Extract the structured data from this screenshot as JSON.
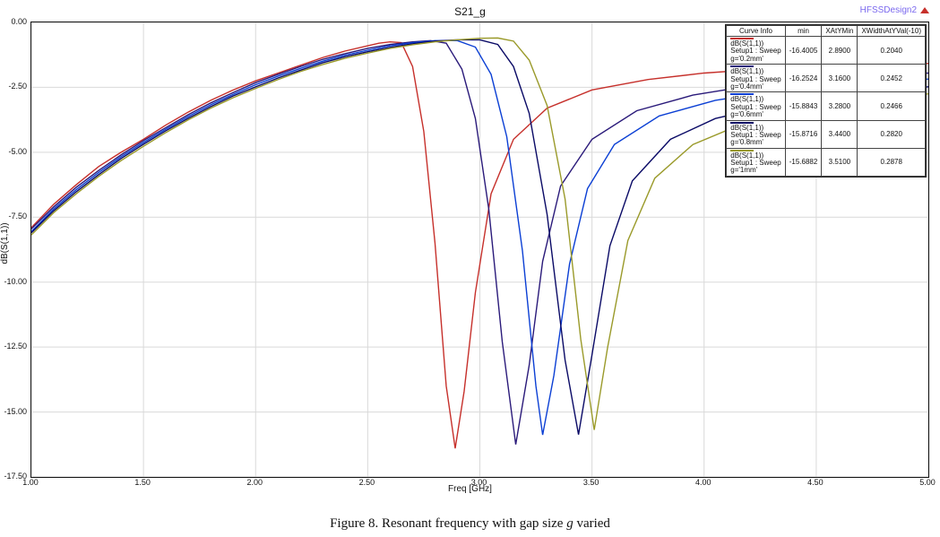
{
  "chart": {
    "type": "line",
    "title": "S21_g",
    "design_label": "HFSSDesign2",
    "x_label": "Freq [GHz]",
    "y_label": "dB(S(1,1))",
    "background_color": "#ffffff",
    "grid_color": "#d9d9d9",
    "border_color": "#111111",
    "axis_font_size": 9,
    "label_font_size": 10,
    "title_font_size": 12,
    "xlim": [
      1.0,
      5.0
    ],
    "ylim": [
      -17.5,
      0.0
    ],
    "xticks": [
      1.0,
      1.5,
      2.0,
      2.5,
      3.0,
      3.5,
      4.0,
      4.5,
      5.0
    ],
    "xtick_labels": [
      "1.00",
      "1.50",
      "2.00",
      "2.50",
      "3.00",
      "3.50",
      "4.00",
      "4.50",
      "5.00"
    ],
    "yticks": [
      0.0,
      -2.5,
      -5.0,
      -7.5,
      -10.0,
      -12.5,
      -15.0,
      -17.5
    ],
    "ytick_labels": [
      "0.00",
      "-2.50",
      "-5.00",
      "-7.50",
      "-10.00",
      "-12.50",
      "-15.00",
      "-17.50"
    ],
    "series": [
      {
        "id": "g02",
        "color": "#c6302b",
        "curve_lines": [
          "dB(S(1,1))",
          "Setup1 : Sweep",
          "g='0.2mm'"
        ],
        "min": "-16.4005",
        "x_at_ymin": "2.8900",
        "xwidth_at_yval": "0.2040",
        "line_width": 1.4,
        "points": [
          [
            1.0,
            -7.9
          ],
          [
            1.1,
            -7.0
          ],
          [
            1.2,
            -6.25
          ],
          [
            1.3,
            -5.55
          ],
          [
            1.4,
            -5.0
          ],
          [
            1.5,
            -4.5
          ],
          [
            1.6,
            -3.95
          ],
          [
            1.7,
            -3.45
          ],
          [
            1.8,
            -3.0
          ],
          [
            1.9,
            -2.6
          ],
          [
            2.0,
            -2.25
          ],
          [
            2.1,
            -1.95
          ],
          [
            2.2,
            -1.65
          ],
          [
            2.3,
            -1.35
          ],
          [
            2.4,
            -1.1
          ],
          [
            2.5,
            -0.9
          ],
          [
            2.55,
            -0.8
          ],
          [
            2.6,
            -0.75
          ],
          [
            2.65,
            -0.78
          ],
          [
            2.7,
            -1.7
          ],
          [
            2.75,
            -4.2
          ],
          [
            2.8,
            -8.5
          ],
          [
            2.85,
            -14.0
          ],
          [
            2.89,
            -16.4
          ],
          [
            2.93,
            -14.2
          ],
          [
            2.98,
            -10.4
          ],
          [
            3.05,
            -6.6
          ],
          [
            3.15,
            -4.5
          ],
          [
            3.3,
            -3.3
          ],
          [
            3.5,
            -2.6
          ],
          [
            3.75,
            -2.2
          ],
          [
            4.0,
            -1.95
          ],
          [
            4.25,
            -1.8
          ],
          [
            4.5,
            -1.7
          ],
          [
            4.75,
            -1.63
          ],
          [
            5.0,
            -1.58
          ]
        ]
      },
      {
        "id": "g04",
        "color": "#2a1a7a",
        "curve_lines": [
          "dB(S(1,1))",
          "Setup1 : Sweep",
          "g='0.4mm'"
        ],
        "min": "-16.2524",
        "x_at_ymin": "3.1600",
        "xwidth_at_yval": "0.2452",
        "line_width": 1.4,
        "points": [
          [
            1.0,
            -7.95
          ],
          [
            1.1,
            -7.1
          ],
          [
            1.2,
            -6.35
          ],
          [
            1.3,
            -5.7
          ],
          [
            1.4,
            -5.1
          ],
          [
            1.5,
            -4.55
          ],
          [
            1.6,
            -4.05
          ],
          [
            1.7,
            -3.55
          ],
          [
            1.8,
            -3.1
          ],
          [
            1.9,
            -2.7
          ],
          [
            2.0,
            -2.32
          ],
          [
            2.1,
            -2.0
          ],
          [
            2.2,
            -1.7
          ],
          [
            2.3,
            -1.42
          ],
          [
            2.4,
            -1.2
          ],
          [
            2.5,
            -1.0
          ],
          [
            2.6,
            -0.85
          ],
          [
            2.7,
            -0.75
          ],
          [
            2.78,
            -0.7
          ],
          [
            2.85,
            -0.8
          ],
          [
            2.92,
            -1.8
          ],
          [
            2.98,
            -3.7
          ],
          [
            3.04,
            -7.2
          ],
          [
            3.1,
            -12.3
          ],
          [
            3.16,
            -16.25
          ],
          [
            3.22,
            -13.2
          ],
          [
            3.28,
            -9.2
          ],
          [
            3.36,
            -6.3
          ],
          [
            3.5,
            -4.5
          ],
          [
            3.7,
            -3.4
          ],
          [
            3.95,
            -2.8
          ],
          [
            4.2,
            -2.45
          ],
          [
            4.5,
            -2.2
          ],
          [
            4.75,
            -2.06
          ],
          [
            5.0,
            -1.95
          ]
        ]
      },
      {
        "id": "g06",
        "color": "#0b3fd4",
        "curve_lines": [
          "dB(S(1,1))",
          "Setup1 : Sweep",
          "g='0.6mm'"
        ],
        "min": "-15.8843",
        "x_at_ymin": "3.2800",
        "xwidth_at_yval": "0.2466",
        "line_width": 1.4,
        "points": [
          [
            1.0,
            -8.05
          ],
          [
            1.1,
            -7.18
          ],
          [
            1.2,
            -6.44
          ],
          [
            1.3,
            -5.78
          ],
          [
            1.4,
            -5.17
          ],
          [
            1.5,
            -4.62
          ],
          [
            1.6,
            -4.11
          ],
          [
            1.7,
            -3.62
          ],
          [
            1.8,
            -3.17
          ],
          [
            1.9,
            -2.77
          ],
          [
            2.0,
            -2.4
          ],
          [
            2.1,
            -2.07
          ],
          [
            2.2,
            -1.77
          ],
          [
            2.3,
            -1.49
          ],
          [
            2.4,
            -1.26
          ],
          [
            2.5,
            -1.07
          ],
          [
            2.6,
            -0.9
          ],
          [
            2.7,
            -0.78
          ],
          [
            2.8,
            -0.7
          ],
          [
            2.9,
            -0.7
          ],
          [
            2.98,
            -0.95
          ],
          [
            3.05,
            -2.0
          ],
          [
            3.12,
            -4.4
          ],
          [
            3.19,
            -8.8
          ],
          [
            3.25,
            -14.0
          ],
          [
            3.28,
            -15.88
          ],
          [
            3.33,
            -13.6
          ],
          [
            3.4,
            -9.3
          ],
          [
            3.48,
            -6.4
          ],
          [
            3.6,
            -4.7
          ],
          [
            3.8,
            -3.6
          ],
          [
            4.05,
            -3.0
          ],
          [
            4.35,
            -2.6
          ],
          [
            4.7,
            -2.35
          ],
          [
            5.0,
            -2.18
          ]
        ]
      },
      {
        "id": "g08",
        "color": "#0a0a66",
        "curve_lines": [
          "dB(S(1,1))",
          "Setup1 : Sweep",
          "g='0.8mm'"
        ],
        "min": "-15.8716",
        "x_at_ymin": "3.4400",
        "xwidth_at_yval": "0.2820",
        "line_width": 1.4,
        "points": [
          [
            1.0,
            -8.1
          ],
          [
            1.1,
            -7.25
          ],
          [
            1.2,
            -6.52
          ],
          [
            1.3,
            -5.86
          ],
          [
            1.4,
            -5.24
          ],
          [
            1.5,
            -4.69
          ],
          [
            1.6,
            -4.17
          ],
          [
            1.7,
            -3.69
          ],
          [
            1.8,
            -3.24
          ],
          [
            1.9,
            -2.83
          ],
          [
            2.0,
            -2.48
          ],
          [
            2.1,
            -2.14
          ],
          [
            2.2,
            -1.84
          ],
          [
            2.3,
            -1.55
          ],
          [
            2.4,
            -1.32
          ],
          [
            2.5,
            -1.13
          ],
          [
            2.6,
            -0.96
          ],
          [
            2.7,
            -0.82
          ],
          [
            2.8,
            -0.72
          ],
          [
            2.9,
            -0.67
          ],
          [
            3.0,
            -0.67
          ],
          [
            3.08,
            -0.85
          ],
          [
            3.15,
            -1.7
          ],
          [
            3.22,
            -3.5
          ],
          [
            3.3,
            -7.4
          ],
          [
            3.38,
            -13.0
          ],
          [
            3.44,
            -15.87
          ],
          [
            3.5,
            -12.8
          ],
          [
            3.58,
            -8.6
          ],
          [
            3.68,
            -6.1
          ],
          [
            3.85,
            -4.5
          ],
          [
            4.05,
            -3.7
          ],
          [
            4.35,
            -3.1
          ],
          [
            4.7,
            -2.72
          ],
          [
            5.0,
            -2.48
          ]
        ]
      },
      {
        "id": "g10",
        "color": "#9a9a2a",
        "curve_lines": [
          "dB(S(1,1))",
          "Setup1 : Sweep",
          "g='1mm'"
        ],
        "min": "-15.6882",
        "x_at_ymin": "3.5100",
        "xwidth_at_yval": "0.2878",
        "line_width": 1.4,
        "points": [
          [
            1.0,
            -8.18
          ],
          [
            1.1,
            -7.32
          ],
          [
            1.2,
            -6.6
          ],
          [
            1.3,
            -5.93
          ],
          [
            1.4,
            -5.32
          ],
          [
            1.5,
            -4.77
          ],
          [
            1.6,
            -4.24
          ],
          [
            1.7,
            -3.75
          ],
          [
            1.8,
            -3.3
          ],
          [
            1.9,
            -2.9
          ],
          [
            2.0,
            -2.54
          ],
          [
            2.1,
            -2.2
          ],
          [
            2.2,
            -1.89
          ],
          [
            2.3,
            -1.62
          ],
          [
            2.4,
            -1.38
          ],
          [
            2.5,
            -1.18
          ],
          [
            2.6,
            -1.0
          ],
          [
            2.7,
            -0.86
          ],
          [
            2.8,
            -0.75
          ],
          [
            2.9,
            -0.67
          ],
          [
            3.0,
            -0.61
          ],
          [
            3.08,
            -0.6
          ],
          [
            3.15,
            -0.72
          ],
          [
            3.22,
            -1.45
          ],
          [
            3.3,
            -3.2
          ],
          [
            3.38,
            -6.8
          ],
          [
            3.45,
            -12.2
          ],
          [
            3.51,
            -15.69
          ],
          [
            3.57,
            -12.5
          ],
          [
            3.66,
            -8.4
          ],
          [
            3.78,
            -6.0
          ],
          [
            3.95,
            -4.7
          ],
          [
            4.2,
            -3.8
          ],
          [
            4.55,
            -3.2
          ],
          [
            5.0,
            -2.75
          ]
        ]
      }
    ],
    "legend": {
      "headers": [
        "Curve Info",
        "min",
        "XAtYMin",
        "XWidthAtYVal(-10)"
      ],
      "position": "top-right"
    }
  },
  "caption": {
    "prefix": "Figure 8. Resonant frequency with gap size ",
    "var": "g",
    "suffix": " varied",
    "font_family": "Times New Roman",
    "font_size": 15
  }
}
